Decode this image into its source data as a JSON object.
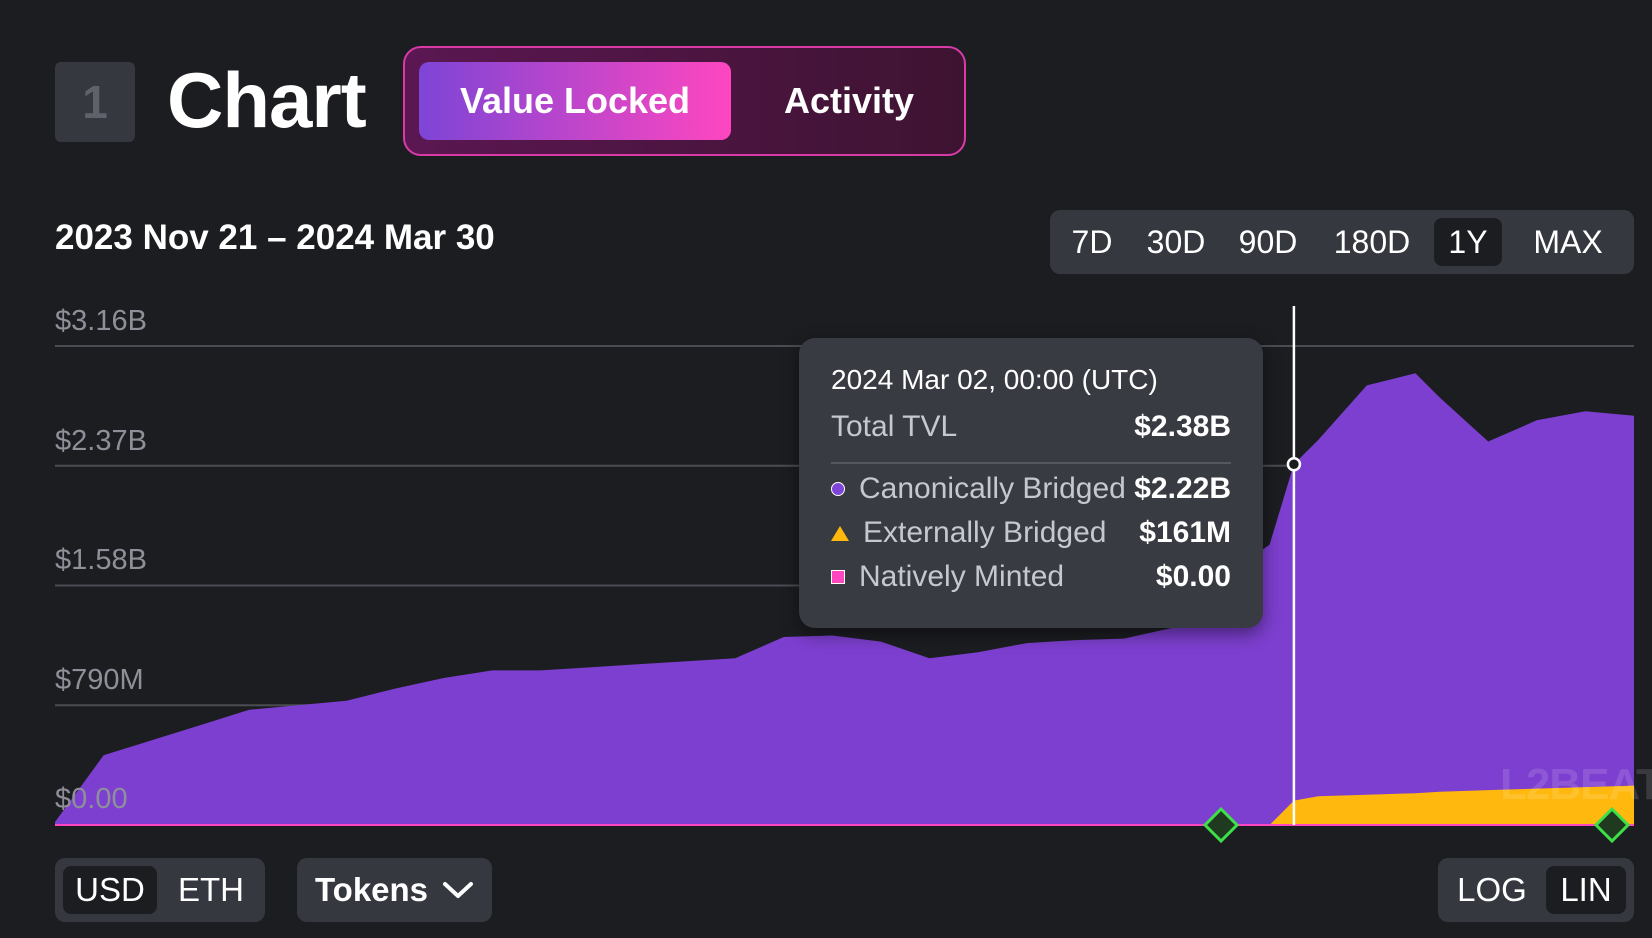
{
  "section": {
    "number": "1",
    "title": "Chart"
  },
  "tabs": {
    "value_locked": "Value Locked",
    "activity": "Activity"
  },
  "date_range": "2023 Nov 21 – 2024 Mar 30",
  "range_options": [
    "7D",
    "30D",
    "90D",
    "180D",
    "1Y",
    "MAX"
  ],
  "range_selected": "1Y",
  "tooltip": {
    "date": "2024 Mar 02, 00:00 (UTC)",
    "total_label": "Total TVL",
    "total_value": "$2.38B",
    "rows": [
      {
        "label": "Canonically Bridged",
        "value": "$2.22B"
      },
      {
        "label": "Externally Bridged",
        "value": "$161M"
      },
      {
        "label": "Natively Minted",
        "value": "$0.00"
      }
    ]
  },
  "controls": {
    "units": [
      "USD",
      "ETH"
    ],
    "unit_selected": "USD",
    "tokens_label": "Tokens",
    "scales": [
      "LOG",
      "LIN"
    ],
    "scale_selected": "LIN"
  },
  "watermark": "L2BEAT",
  "chart_data": {
    "type": "area",
    "stacked": true,
    "title": "",
    "xlabel": "",
    "ylabel": "",
    "x_start": "2023-11-21",
    "x_end": "2024-03-30",
    "x": [
      "2023-11-21",
      "2023-11-25",
      "2023-11-29",
      "2023-12-03",
      "2023-12-07",
      "2023-12-11",
      "2023-12-15",
      "2023-12-19",
      "2023-12-23",
      "2023-12-27",
      "2023-12-31",
      "2024-01-04",
      "2024-01-08",
      "2024-01-12",
      "2024-01-16",
      "2024-01-20",
      "2024-01-24",
      "2024-01-28",
      "2024-02-01",
      "2024-02-05",
      "2024-02-09",
      "2024-02-13",
      "2024-02-17",
      "2024-02-21",
      "2024-02-25",
      "2024-02-29",
      "2024-03-02",
      "2024-03-04",
      "2024-03-08",
      "2024-03-12",
      "2024-03-14",
      "2024-03-18",
      "2024-03-22",
      "2024-03-26",
      "2024-03-30"
    ],
    "series": [
      {
        "name": "Canonically Bridged",
        "color": "#7d3fd0",
        "values": [
          0.02,
          0.46,
          0.56,
          0.66,
          0.76,
          0.79,
          0.82,
          0.9,
          0.97,
          1.02,
          1.02,
          1.04,
          1.06,
          1.08,
          1.1,
          1.24,
          1.25,
          1.21,
          1.1,
          1.14,
          1.2,
          1.22,
          1.23,
          1.3,
          1.62,
          1.85,
          2.22,
          2.35,
          2.7,
          2.77,
          2.6,
          2.3,
          2.43,
          2.48,
          2.44
        ]
      },
      {
        "name": "Externally Bridged",
        "color": "#ffb80d",
        "values": [
          0,
          0,
          0,
          0,
          0,
          0,
          0,
          0,
          0,
          0,
          0,
          0,
          0,
          0,
          0,
          0,
          0,
          0,
          0,
          0,
          0,
          0,
          0,
          0,
          0,
          0,
          0.161,
          0.19,
          0.2,
          0.21,
          0.22,
          0.23,
          0.24,
          0.25,
          0.26
        ]
      },
      {
        "name": "Natively Minted",
        "color": "#ff46c0",
        "values": [
          0,
          0,
          0,
          0,
          0,
          0,
          0,
          0,
          0,
          0,
          0,
          0,
          0,
          0,
          0,
          0,
          0,
          0,
          0,
          0,
          0,
          0,
          0,
          0,
          0,
          0,
          0,
          0,
          0,
          0,
          0,
          0,
          0,
          0,
          0
        ]
      }
    ],
    "y_unit": "B USD",
    "y_ticks": [
      "$0.00",
      "$790M",
      "$1.58B",
      "$2.37B",
      "$3.16B"
    ],
    "y_tick_values": [
      0,
      0.79,
      1.58,
      2.37,
      3.16
    ],
    "ylim": [
      0,
      3.16
    ],
    "hover": {
      "x": "2024-03-02",
      "total": 2.38
    },
    "milestones": [
      "2024-02-25",
      "2024-03-30"
    ],
    "grid": true
  }
}
